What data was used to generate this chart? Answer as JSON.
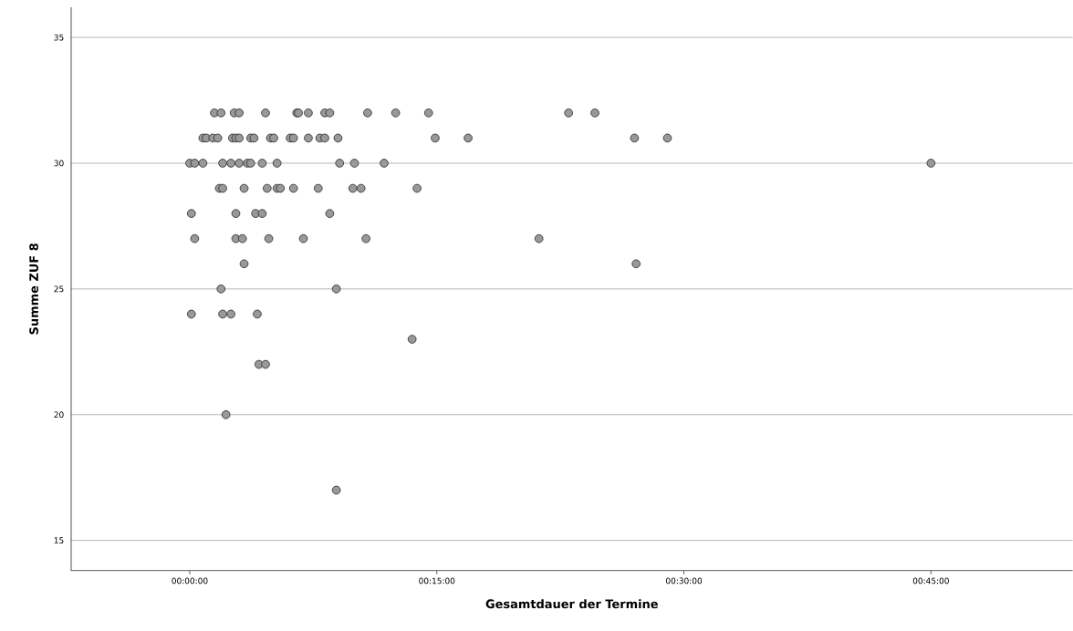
{
  "chart_data": {
    "type": "scatter",
    "xlabel": "Gesamtdauer der Termine",
    "ylabel": "Summe ZUF 8",
    "xlim": [
      -7.2,
      53.6
    ],
    "ylim": [
      13.8,
      36.2
    ],
    "xticks": [
      {
        "value": 0,
        "label": "00:00:00"
      },
      {
        "value": 15,
        "label": "00:15:00"
      },
      {
        "value": 30,
        "label": "00:30:00"
      },
      {
        "value": 45,
        "label": "00:45:00"
      }
    ],
    "yticks": [
      15,
      20,
      25,
      30,
      35
    ],
    "grid": "y",
    "marker": "circle",
    "color": "#999999",
    "x": [
      1.5,
      1.9,
      2.7,
      3.0,
      4.6,
      6.5,
      6.6,
      7.2,
      8.2,
      8.5,
      10.8,
      12.5,
      14.5,
      23.0,
      24.6,
      0.8,
      1.0,
      1.4,
      1.7,
      2.6,
      2.8,
      3.0,
      3.7,
      3.9,
      4.9,
      5.1,
      6.1,
      6.3,
      7.2,
      7.9,
      8.2,
      9.0,
      14.9,
      16.9,
      27.0,
      29.0,
      0.0,
      0.3,
      0.8,
      2.0,
      2.5,
      3.0,
      3.5,
      3.7,
      4.4,
      5.3,
      9.1,
      10.0,
      11.8,
      45.0,
      1.8,
      2.0,
      3.3,
      4.7,
      5.3,
      5.5,
      6.3,
      7.8,
      9.9,
      10.4,
      13.8,
      0.1,
      2.8,
      4.0,
      4.4,
      8.5,
      0.3,
      2.8,
      3.2,
      4.8,
      6.9,
      10.7,
      21.2,
      3.3,
      27.1,
      1.9,
      8.9,
      0.1,
      2.0,
      2.5,
      4.1,
      13.5,
      4.2,
      4.6,
      2.2,
      8.9
    ],
    "values": [
      32,
      32,
      32,
      32,
      32,
      32,
      32,
      32,
      32,
      32,
      32,
      32,
      32,
      32,
      32,
      31,
      31,
      31,
      31,
      31,
      31,
      31,
      31,
      31,
      31,
      31,
      31,
      31,
      31,
      31,
      31,
      31,
      31,
      31,
      31,
      31,
      30,
      30,
      30,
      30,
      30,
      30,
      30,
      30,
      30,
      30,
      30,
      30,
      30,
      30,
      29,
      29,
      29,
      29,
      29,
      29,
      29,
      29,
      29,
      29,
      29,
      28,
      28,
      28,
      28,
      28,
      27,
      27,
      27,
      27,
      27,
      27,
      27,
      26,
      26,
      25,
      25,
      24,
      24,
      24,
      24,
      23,
      22,
      22,
      20,
      17
    ]
  }
}
